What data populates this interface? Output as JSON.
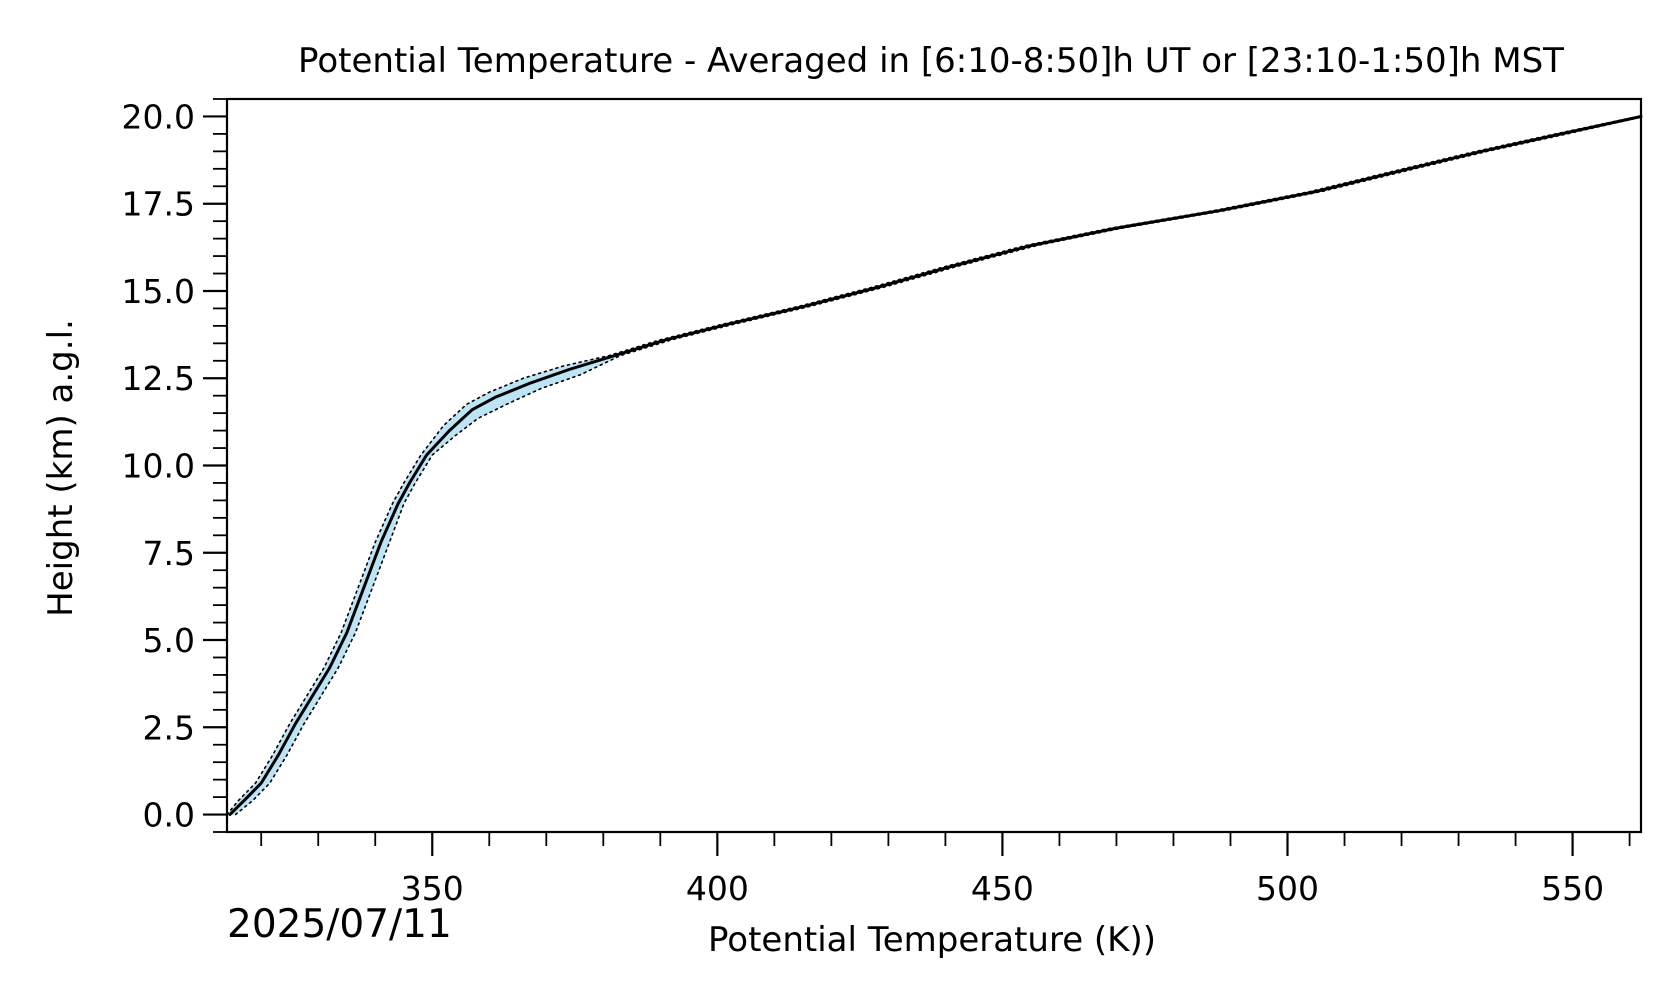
{
  "chart_data": {
    "type": "line",
    "title": "Potential Temperature - Averaged in [6:10-8:50]h UT or [23:10-1:50]h MST",
    "xlabel": "Potential Temperature (K))",
    "ylabel": "Height (km) a.g.l.",
    "date": "2025/07/11",
    "xlim": [
      314,
      562
    ],
    "ylim": [
      -0.5,
      20.5
    ],
    "xticks": [
      350,
      400,
      450,
      500,
      550
    ],
    "xtick_labels": [
      "350",
      "400",
      "450",
      "500",
      "550"
    ],
    "yticks": [
      0,
      2.5,
      5,
      7.5,
      10,
      12.5,
      15,
      17.5,
      20
    ],
    "ytick_labels": [
      "0.0",
      "2.5",
      "5.0",
      "7.5",
      "10.0",
      "12.5",
      "15.0",
      "17.5",
      "20.0"
    ],
    "x_minor_step": 10,
    "y_minor_step": 0.5,
    "grid": false,
    "colors": {
      "mean": "#000000",
      "spread_band": "#87ceeb",
      "spread_bounds": "#000000"
    },
    "series": [
      {
        "role": "mean",
        "style": "solid",
        "x": [
          314.5,
          317,
          320,
          323,
          326,
          329,
          332,
          335,
          338,
          341,
          344,
          346,
          349,
          353,
          357,
          361,
          367,
          374,
          382,
          391,
          402,
          415,
          428,
          441,
          455,
          470,
          488,
          505,
          520,
          534,
          548,
          562
        ],
        "y": [
          0.0,
          0.4,
          0.9,
          1.7,
          2.6,
          3.4,
          4.2,
          5.2,
          6.5,
          7.8,
          8.9,
          9.5,
          10.3,
          11.0,
          11.6,
          11.95,
          12.35,
          12.75,
          13.15,
          13.6,
          14.05,
          14.55,
          15.1,
          15.7,
          16.3,
          16.8,
          17.3,
          17.85,
          18.45,
          19.0,
          19.5,
          20.0
        ]
      },
      {
        "role": "lower-bound",
        "style": "dotted",
        "x": [
          315.5,
          318.5,
          321.5,
          324.5,
          327.5,
          330.5,
          333.5,
          336.5,
          339.5,
          342.5,
          345,
          347,
          350,
          354,
          358,
          363,
          369,
          376,
          383,
          392,
          403,
          416,
          429,
          442,
          456,
          471,
          489,
          506,
          521,
          535,
          549,
          562.5
        ],
        "y": [
          0.0,
          0.4,
          0.9,
          1.7,
          2.6,
          3.4,
          4.2,
          5.2,
          6.5,
          7.8,
          8.9,
          9.5,
          10.3,
          10.85,
          11.35,
          11.75,
          12.2,
          12.6,
          13.15,
          13.6,
          14.05,
          14.55,
          15.1,
          15.7,
          16.3,
          16.8,
          17.3,
          17.85,
          18.45,
          19.0,
          19.5,
          20.0
        ]
      },
      {
        "role": "upper-bound",
        "style": "dotted",
        "x": [
          314,
          316,
          319,
          322,
          325,
          328,
          331,
          334,
          337,
          340,
          343,
          345,
          348,
          352,
          356,
          360,
          366,
          373,
          381,
          390,
          401,
          414,
          427,
          440,
          454,
          469,
          487,
          504,
          519,
          533,
          547,
          561.5
        ],
        "y": [
          0.0,
          0.4,
          0.9,
          1.7,
          2.6,
          3.4,
          4.2,
          5.2,
          6.5,
          7.8,
          8.9,
          9.5,
          10.3,
          11.15,
          11.75,
          12.1,
          12.5,
          12.85,
          13.15,
          13.6,
          14.05,
          14.55,
          15.1,
          15.7,
          16.3,
          16.8,
          17.3,
          17.85,
          18.45,
          19.0,
          19.5,
          20.0
        ]
      }
    ]
  }
}
